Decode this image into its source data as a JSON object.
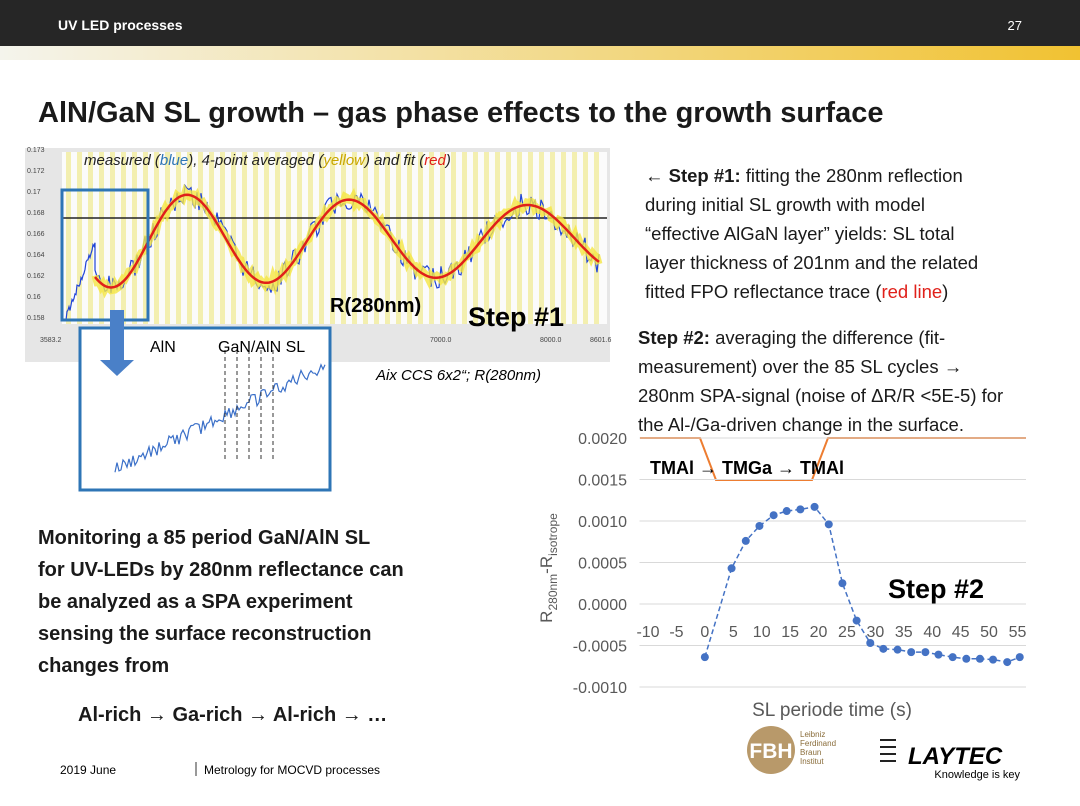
{
  "header": {
    "section": "UV LED processes",
    "page": "27"
  },
  "title": "AlN/GaN SL growth – gas phase effects to the growth surface",
  "screenshot1": {
    "caption": [
      "measured (",
      "blue",
      "), 4-point averaged (",
      "yellow",
      ") and fit (",
      "red",
      ")"
    ],
    "ytick_labels": [
      "0.173",
      "0.172",
      "0.17",
      "0.168",
      "0.166",
      "0.164",
      "0.162",
      "0.16",
      "0.158"
    ],
    "xtick_labels": [
      "3583.2",
      "7000.0",
      "8000.0",
      "8601.6"
    ],
    "signal": "R(280nm)",
    "step": "Step #1",
    "source": "Aix CCS 6x2“; R(280nm)"
  },
  "screenshot2": {
    "labels": [
      "AlN",
      "GaN/AlN SL"
    ]
  },
  "step1": {
    "label": "← Step #1:",
    "lines": [
      "fitting the 280nm reflection",
      "during initial SL growth with model",
      "“effective AlGaN layer” yields: SL total",
      "layer thickness of 201nm and the related",
      "fitted FPO reflectance trace ("
    ],
    "highlight": "red line",
    "end": ")"
  },
  "step2": {
    "label": "Step #2:",
    "lines": [
      "averaging the difference (fit-",
      "measurement) over the 85 SL cycles →",
      "280nm SPA-signal (noise of ΔR/R <5E-5) for",
      "the Al-/Ga-driven change in the surface."
    ]
  },
  "monitoring": {
    "lines": [
      "Monitoring a 85 period GaN/AlN SL",
      "for UV-LEDs by 280nm reflectance can",
      "be analyzed as a SPA experiment",
      "sensing the surface reconstruction",
      "changes from"
    ],
    "sequence": "Al-rich → Ga-rich → Al-rich → …"
  },
  "chart_data": {
    "type": "scatter",
    "x_label": "SL periode time (s)",
    "y_label": {
      "r1": "R",
      "s1": "280nm",
      "r2": "-R",
      "s2": "isotrope"
    },
    "annotations": {
      "phases": "TMAl → TMGa →  TMAl",
      "step": "Step #2"
    },
    "color": "#4472c4",
    "line_style": "dashed",
    "xlim": [
      -11.5,
      56.5
    ],
    "xticks": [
      -10,
      -5,
      0,
      5,
      10,
      15,
      20,
      25,
      30,
      35,
      40,
      45,
      50,
      55
    ],
    "ylim": [
      -0.001,
      0.002
    ],
    "yticks": [
      {
        "value": -0.001,
        "label": "-0.0010"
      },
      {
        "value": -0.0005,
        "label": "-0.0005"
      },
      {
        "value": 0,
        "label": "0.0000"
      },
      {
        "value": 0.0005,
        "label": "0.0005"
      },
      {
        "value": 0.001,
        "label": "0.0010"
      },
      {
        "value": 0.0015,
        "label": "0.0015"
      },
      {
        "value": 0.002,
        "label": "0.0020"
      }
    ],
    "grid": true,
    "x": [
      0,
      4.7,
      7.2,
      9.6,
      12.1,
      14.4,
      16.8,
      19.3,
      21.8,
      24.2,
      26.7,
      29.1,
      31.4,
      33.9,
      36.3,
      38.8,
      41.1,
      43.6,
      46.0,
      48.4,
      50.7,
      53.2,
      55.4
    ],
    "values": [
      -0.00064,
      0.00043,
      0.00076,
      0.00094,
      0.00107,
      0.00112,
      0.00114,
      0.00117,
      0.00096,
      0.00025,
      -0.0002,
      -0.00047,
      -0.00054,
      -0.00055,
      -0.00058,
      -0.00058,
      -0.00061,
      -0.00064,
      -0.00066,
      -0.00066,
      -0.00067,
      -0.0007,
      -0.00064
    ]
  },
  "footer": {
    "date": "2019 June",
    "talk": "Metrology for MOCVD processes"
  },
  "logos": {
    "fbh": "FBH",
    "fbh_lines": [
      "Leibniz",
      "Ferdinand",
      "Braun",
      "Institut"
    ],
    "laytec": "LAYTEC",
    "slogan": "Knowledge is key"
  }
}
